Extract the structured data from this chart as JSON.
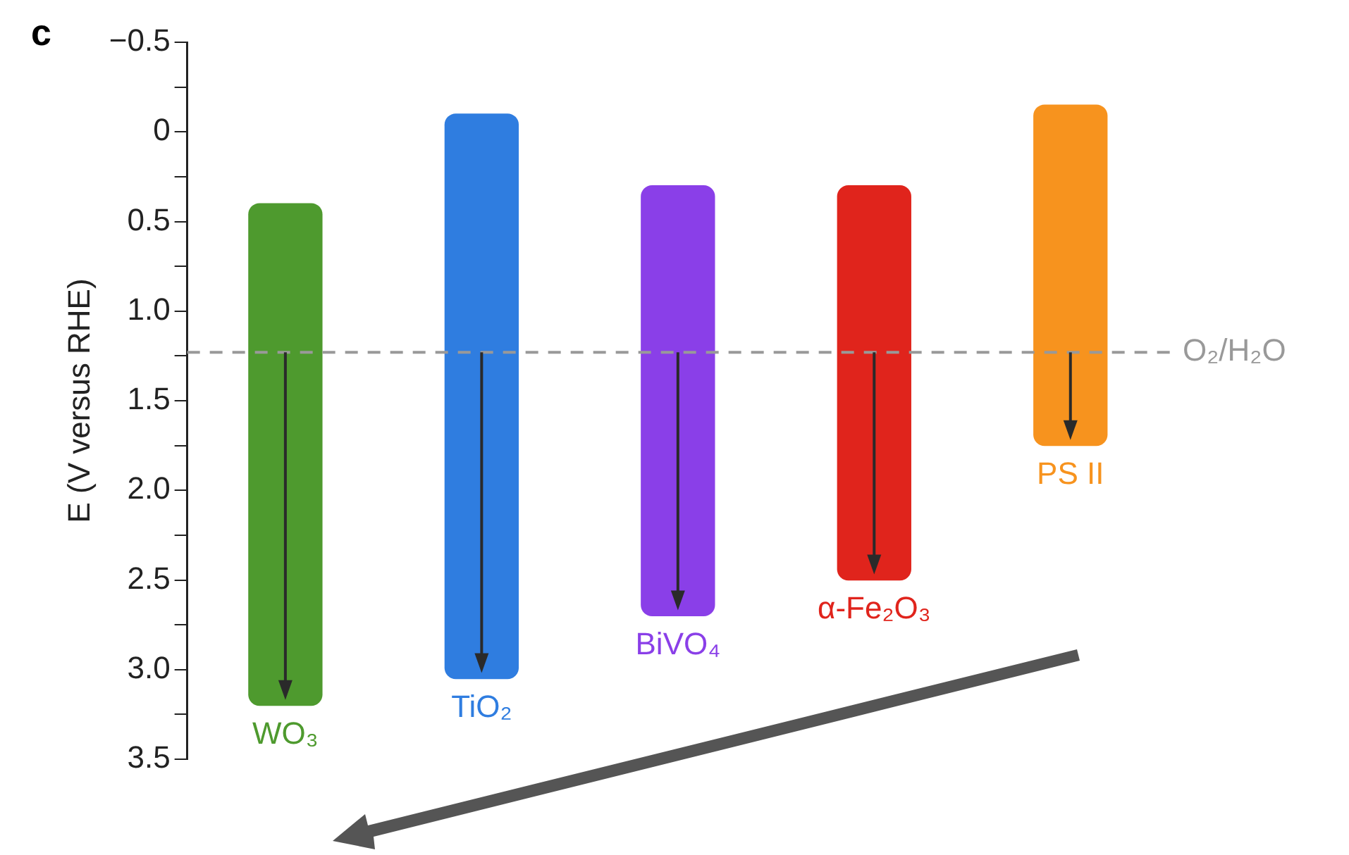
{
  "chart_data": {
    "type": "bar",
    "ylabel": "E (V versus RHE)",
    "categories": [
      "WO₃",
      "TiO₂",
      "BiVO₄",
      "α-Fe₂O₃",
      "PS II"
    ],
    "base": [
      0.4,
      -0.1,
      0.3,
      0.3,
      -0.15
    ],
    "values": [
      2.8,
      3.15,
      2.4,
      2.2,
      1.9
    ],
    "colors": [
      "#4e9a2e",
      "#2f7de0",
      "#8a3fe8",
      "#e0241c",
      "#f7931e"
    ],
    "ylim": [
      3.5,
      -0.5
    ],
    "yticks": [
      {
        "value": -0.5,
        "label": "−0.5"
      },
      {
        "value": -0.25,
        "label": null
      },
      0,
      {
        "value": 0.25,
        "label": null
      },
      0.5,
      {
        "value": 0.75,
        "label": null
      },
      {
        "value": 1,
        "label": "1.0"
      },
      {
        "value": 1.25,
        "label": null
      },
      1.5,
      {
        "value": 1.75,
        "label": null
      },
      {
        "value": 2,
        "label": "2.0"
      },
      {
        "value": 2.25,
        "label": null
      },
      2.5,
      {
        "value": 2.75,
        "label": null
      },
      {
        "value": 3,
        "label": "3.0"
      },
      {
        "value": 3.25,
        "label": null
      },
      3.5
    ],
    "ref_lines": [
      {
        "axis": "y",
        "value": 1.23,
        "label": "O₂/H₂O",
        "color": "#999999",
        "line_style": "dashed"
      }
    ],
    "annotations": [
      "c"
    ],
    "tick_labels": "y",
    "grid": false,
    "legend": false
  }
}
